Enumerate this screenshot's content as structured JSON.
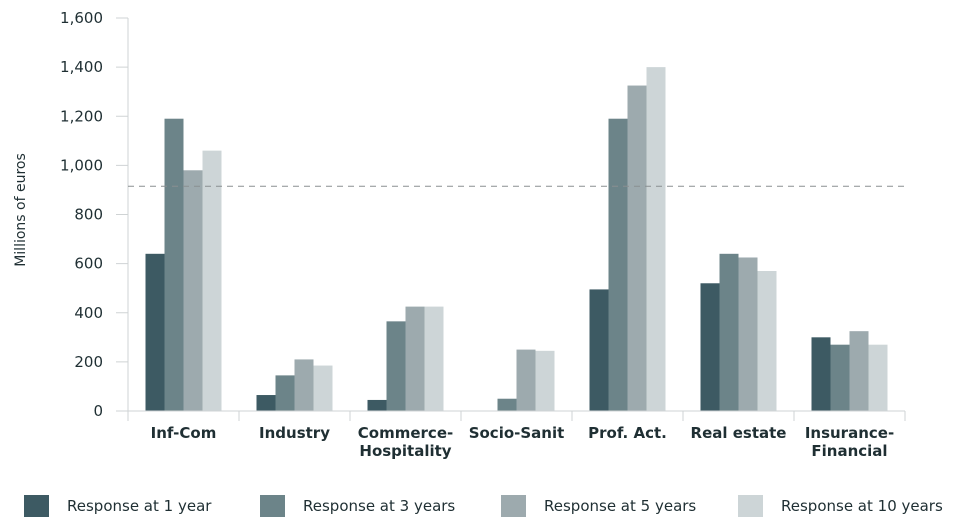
{
  "chart_data": {
    "type": "bar",
    "categories": [
      [
        "Inf-Com"
      ],
      [
        "Industry"
      ],
      [
        "Commerce-",
        "Hospitality"
      ],
      [
        "Socio-Sanit"
      ],
      [
        "Prof. Act."
      ],
      [
        "Real estate"
      ],
      [
        "Insurance-",
        "Financial"
      ]
    ],
    "series": [
      {
        "name": "Response at 1 year",
        "color": "#3d5a63",
        "values": [
          640,
          65,
          45,
          0,
          495,
          520,
          300
        ]
      },
      {
        "name": "Response at 3 years",
        "color": "#6c8489",
        "values": [
          1190,
          145,
          365,
          50,
          1190,
          640,
          270
        ]
      },
      {
        "name": "Response at 5 years",
        "color": "#9daaae",
        "values": [
          980,
          210,
          425,
          250,
          1325,
          625,
          325
        ]
      },
      {
        "name": "Response at 10 years",
        "color": "#cdd5d7",
        "values": [
          1060,
          185,
          425,
          245,
          1400,
          570,
          270
        ]
      }
    ],
    "reference_line": {
      "value": 915,
      "style": "dashed",
      "color": "#8a8f91"
    },
    "ylabel": "Millions of euros",
    "xlabel": "",
    "ylim": [
      0,
      1600
    ],
    "yticks": [
      "0",
      "200",
      "400",
      "600",
      "800",
      "1,000",
      "1,200",
      "1,400",
      "1,600"
    ],
    "ytick_values": [
      0,
      200,
      400,
      600,
      800,
      1000,
      1200,
      1400,
      1600
    ],
    "grid": false,
    "legend_position": "bottom"
  }
}
